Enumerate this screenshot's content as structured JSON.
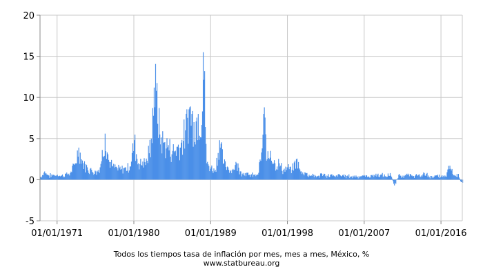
{
  "chart_data": {
    "type": "bar",
    "title": "Todos los tiempos tasa de inflación por mes, mes a mes, México, %",
    "source": "www.statbureau.org",
    "ylim": [
      -5,
      20
    ],
    "y_ticks": [
      -5,
      0,
      5,
      10,
      15,
      20
    ],
    "y_tick_labels": [
      "-5",
      "0",
      "5",
      "10",
      "15",
      "20"
    ],
    "x_ticks": [
      {
        "label": "01/01/1971",
        "year": 1971
      },
      {
        "label": "01/01/1980",
        "year": 1980
      },
      {
        "label": "01/01/1989",
        "year": 1989
      },
      {
        "label": "01/01/1998",
        "year": 1998
      },
      {
        "label": "01/01/2007",
        "year": 2007
      },
      {
        "label": "01/01/2016",
        "year": 2016
      }
    ],
    "x_range": [
      1969,
      2018.5
    ],
    "grid": true,
    "color": "#4a8fe8",
    "series": [
      {
        "values": [
          {
            "year": 1969,
            "y": 0.3
          },
          {
            "year": 1969.5,
            "y": 1.0
          },
          {
            "year": 1970,
            "y": 0.5
          },
          {
            "year": 1970.5,
            "y": 0.6
          },
          {
            "year": 1971,
            "y": 0.6
          },
          {
            "year": 1971.5,
            "y": 0.5
          },
          {
            "year": 1972,
            "y": 0.7
          },
          {
            "year": 1972.5,
            "y": 0.8
          },
          {
            "year": 1973,
            "y": 1.8
          },
          {
            "year": 1973.5,
            "y": 3.9
          },
          {
            "year": 1974,
            "y": 2.0
          },
          {
            "year": 1974.5,
            "y": 1.5
          },
          {
            "year": 1975,
            "y": 1.2
          },
          {
            "year": 1975.5,
            "y": 1.0
          },
          {
            "year": 1976,
            "y": 1.5
          },
          {
            "year": 1976.6,
            "y": 5.6
          },
          {
            "year": 1977,
            "y": 2.4
          },
          {
            "year": 1977.5,
            "y": 1.6
          },
          {
            "year": 1978,
            "y": 1.4
          },
          {
            "year": 1978.5,
            "y": 1.3
          },
          {
            "year": 1979,
            "y": 1.5
          },
          {
            "year": 1979.5,
            "y": 1.6
          },
          {
            "year": 1980,
            "y": 4.8
          },
          {
            "year": 1980.5,
            "y": 2.0
          },
          {
            "year": 1981,
            "y": 2.2
          },
          {
            "year": 1981.5,
            "y": 2.3
          },
          {
            "year": 1982,
            "y": 5.0
          },
          {
            "year": 1982.3,
            "y": 11.2
          },
          {
            "year": 1982.6,
            "y": 10.8
          },
          {
            "year": 1983,
            "y": 5.5
          },
          {
            "year": 1983.5,
            "y": 4.5
          },
          {
            "year": 1984,
            "y": 4.2
          },
          {
            "year": 1984.5,
            "y": 3.5
          },
          {
            "year": 1985,
            "y": 4.0
          },
          {
            "year": 1985.5,
            "y": 4.5
          },
          {
            "year": 1986,
            "y": 6.0
          },
          {
            "year": 1986.5,
            "y": 8.8
          },
          {
            "year": 1987,
            "y": 7.0
          },
          {
            "year": 1987.5,
            "y": 8.0
          },
          {
            "year": 1988,
            "y": 8.3
          },
          {
            "year": 1988.1,
            "y": 15.5
          },
          {
            "year": 1988.5,
            "y": 2.0
          },
          {
            "year": 1989,
            "y": 1.5
          },
          {
            "year": 1989.5,
            "y": 1.2
          },
          {
            "year": 1990,
            "y": 4.8
          },
          {
            "year": 1990.5,
            "y": 2.0
          },
          {
            "year": 1991,
            "y": 1.5
          },
          {
            "year": 1991.5,
            "y": 1.2
          },
          {
            "year": 1992,
            "y": 2.0
          },
          {
            "year": 1992.5,
            "y": 1.0
          },
          {
            "year": 1993,
            "y": 0.8
          },
          {
            "year": 1993.5,
            "y": 0.6
          },
          {
            "year": 1994,
            "y": 0.6
          },
          {
            "year": 1994.5,
            "y": 0.6
          },
          {
            "year": 1995,
            "y": 3.8
          },
          {
            "year": 1995.2,
            "y": 8.0
          },
          {
            "year": 1995.6,
            "y": 2.5
          },
          {
            "year": 1996,
            "y": 3.5
          },
          {
            "year": 1996.5,
            "y": 2.0
          },
          {
            "year": 1997,
            "y": 2.0
          },
          {
            "year": 1997.5,
            "y": 1.2
          },
          {
            "year": 1998,
            "y": 1.5
          },
          {
            "year": 1998.5,
            "y": 1.2
          },
          {
            "year": 1999,
            "y": 2.5
          },
          {
            "year": 1999.5,
            "y": 1.0
          },
          {
            "year": 2000,
            "y": 0.9
          },
          {
            "year": 2000.5,
            "y": 0.6
          },
          {
            "year": 2001,
            "y": 0.6
          },
          {
            "year": 2001.5,
            "y": 0.4
          },
          {
            "year": 2002,
            "y": 0.7
          },
          {
            "year": 2002.5,
            "y": 0.5
          },
          {
            "year": 2003,
            "y": 0.6
          },
          {
            "year": 2003.5,
            "y": 0.4
          },
          {
            "year": 2004,
            "y": 0.6
          },
          {
            "year": 2004.5,
            "y": 0.5
          },
          {
            "year": 2005,
            "y": 0.5
          },
          {
            "year": 2005.5,
            "y": 0.4
          },
          {
            "year": 2006,
            "y": 0.5
          },
          {
            "year": 2006.5,
            "y": 0.4
          },
          {
            "year": 2007,
            "y": 0.5
          },
          {
            "year": 2007.5,
            "y": 0.4
          },
          {
            "year": 2008,
            "y": 0.6
          },
          {
            "year": 2008.5,
            "y": 0.6
          },
          {
            "year": 2009,
            "y": 0.6
          },
          {
            "year": 2009.5,
            "y": 0.4
          },
          {
            "year": 2010,
            "y": 0.8
          },
          {
            "year": 2010.5,
            "y": -0.7
          },
          {
            "year": 2011,
            "y": 0.6
          },
          {
            "year": 2011.5,
            "y": 0.5
          },
          {
            "year": 2012,
            "y": 0.6
          },
          {
            "year": 2012.5,
            "y": 0.5
          },
          {
            "year": 2013,
            "y": 0.6
          },
          {
            "year": 2013.5,
            "y": 0.4
          },
          {
            "year": 2014,
            "y": 0.8
          },
          {
            "year": 2014.5,
            "y": 0.5
          },
          {
            "year": 2015,
            "y": 0.4
          },
          {
            "year": 2015.5,
            "y": 0.5
          },
          {
            "year": 2016,
            "y": 0.4
          },
          {
            "year": 2016.5,
            "y": 0.4
          },
          {
            "year": 2017,
            "y": 1.7
          },
          {
            "year": 2017.5,
            "y": 0.5
          },
          {
            "year": 2018,
            "y": 0.7
          },
          {
            "year": 2018.3,
            "y": -0.3
          }
        ]
      }
    ]
  }
}
